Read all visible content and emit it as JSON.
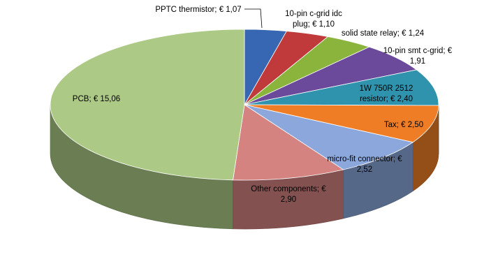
{
  "chart_data": {
    "type": "pie",
    "style": "3d",
    "title": "",
    "slices": [
      {
        "name": "PPTC thermistor",
        "value": 1.07,
        "label_lines": [
          "PPTC thermistor;  € 1,07"
        ],
        "color": "#3767b3"
      },
      {
        "name": "10-pin c-grid idc plug",
        "value": 1.1,
        "label_lines": [
          "10-pin c-grid idc",
          "plug;  € 1,10"
        ],
        "color": "#c0393b"
      },
      {
        "name": "solid state relay",
        "value": 1.24,
        "label_lines": [
          "solid state relay;  € 1,24"
        ],
        "color": "#8ab43c"
      },
      {
        "name": "10-pin smt c-grid",
        "value": 1.91,
        "label_lines": [
          "10-pin smt c-grid;  €",
          "1,91"
        ],
        "color": "#6b4a9b"
      },
      {
        "name": "1W 750R 2512 resistor",
        "value": 2.4,
        "label_lines": [
          "1W 750R 2512",
          "resistor;  € 2,40"
        ],
        "color": "#2f93ae"
      },
      {
        "name": "Tax",
        "value": 2.5,
        "label_lines": [
          "Tax;  € 2,50"
        ],
        "color": "#ef7d26"
      },
      {
        "name": "micro-fit connector",
        "value": 2.52,
        "label_lines": [
          "micro-fit connector;  €",
          "2,52"
        ],
        "color": "#8ba7db"
      },
      {
        "name": "Other components",
        "value": 2.9,
        "label_lines": [
          "Other components;  €",
          "2,90"
        ],
        "color": "#d48381"
      },
      {
        "name": "PCB",
        "value": 15.06,
        "label_lines": [
          "PCB;  € 15,06"
        ],
        "color": "#adc986"
      }
    ]
  }
}
